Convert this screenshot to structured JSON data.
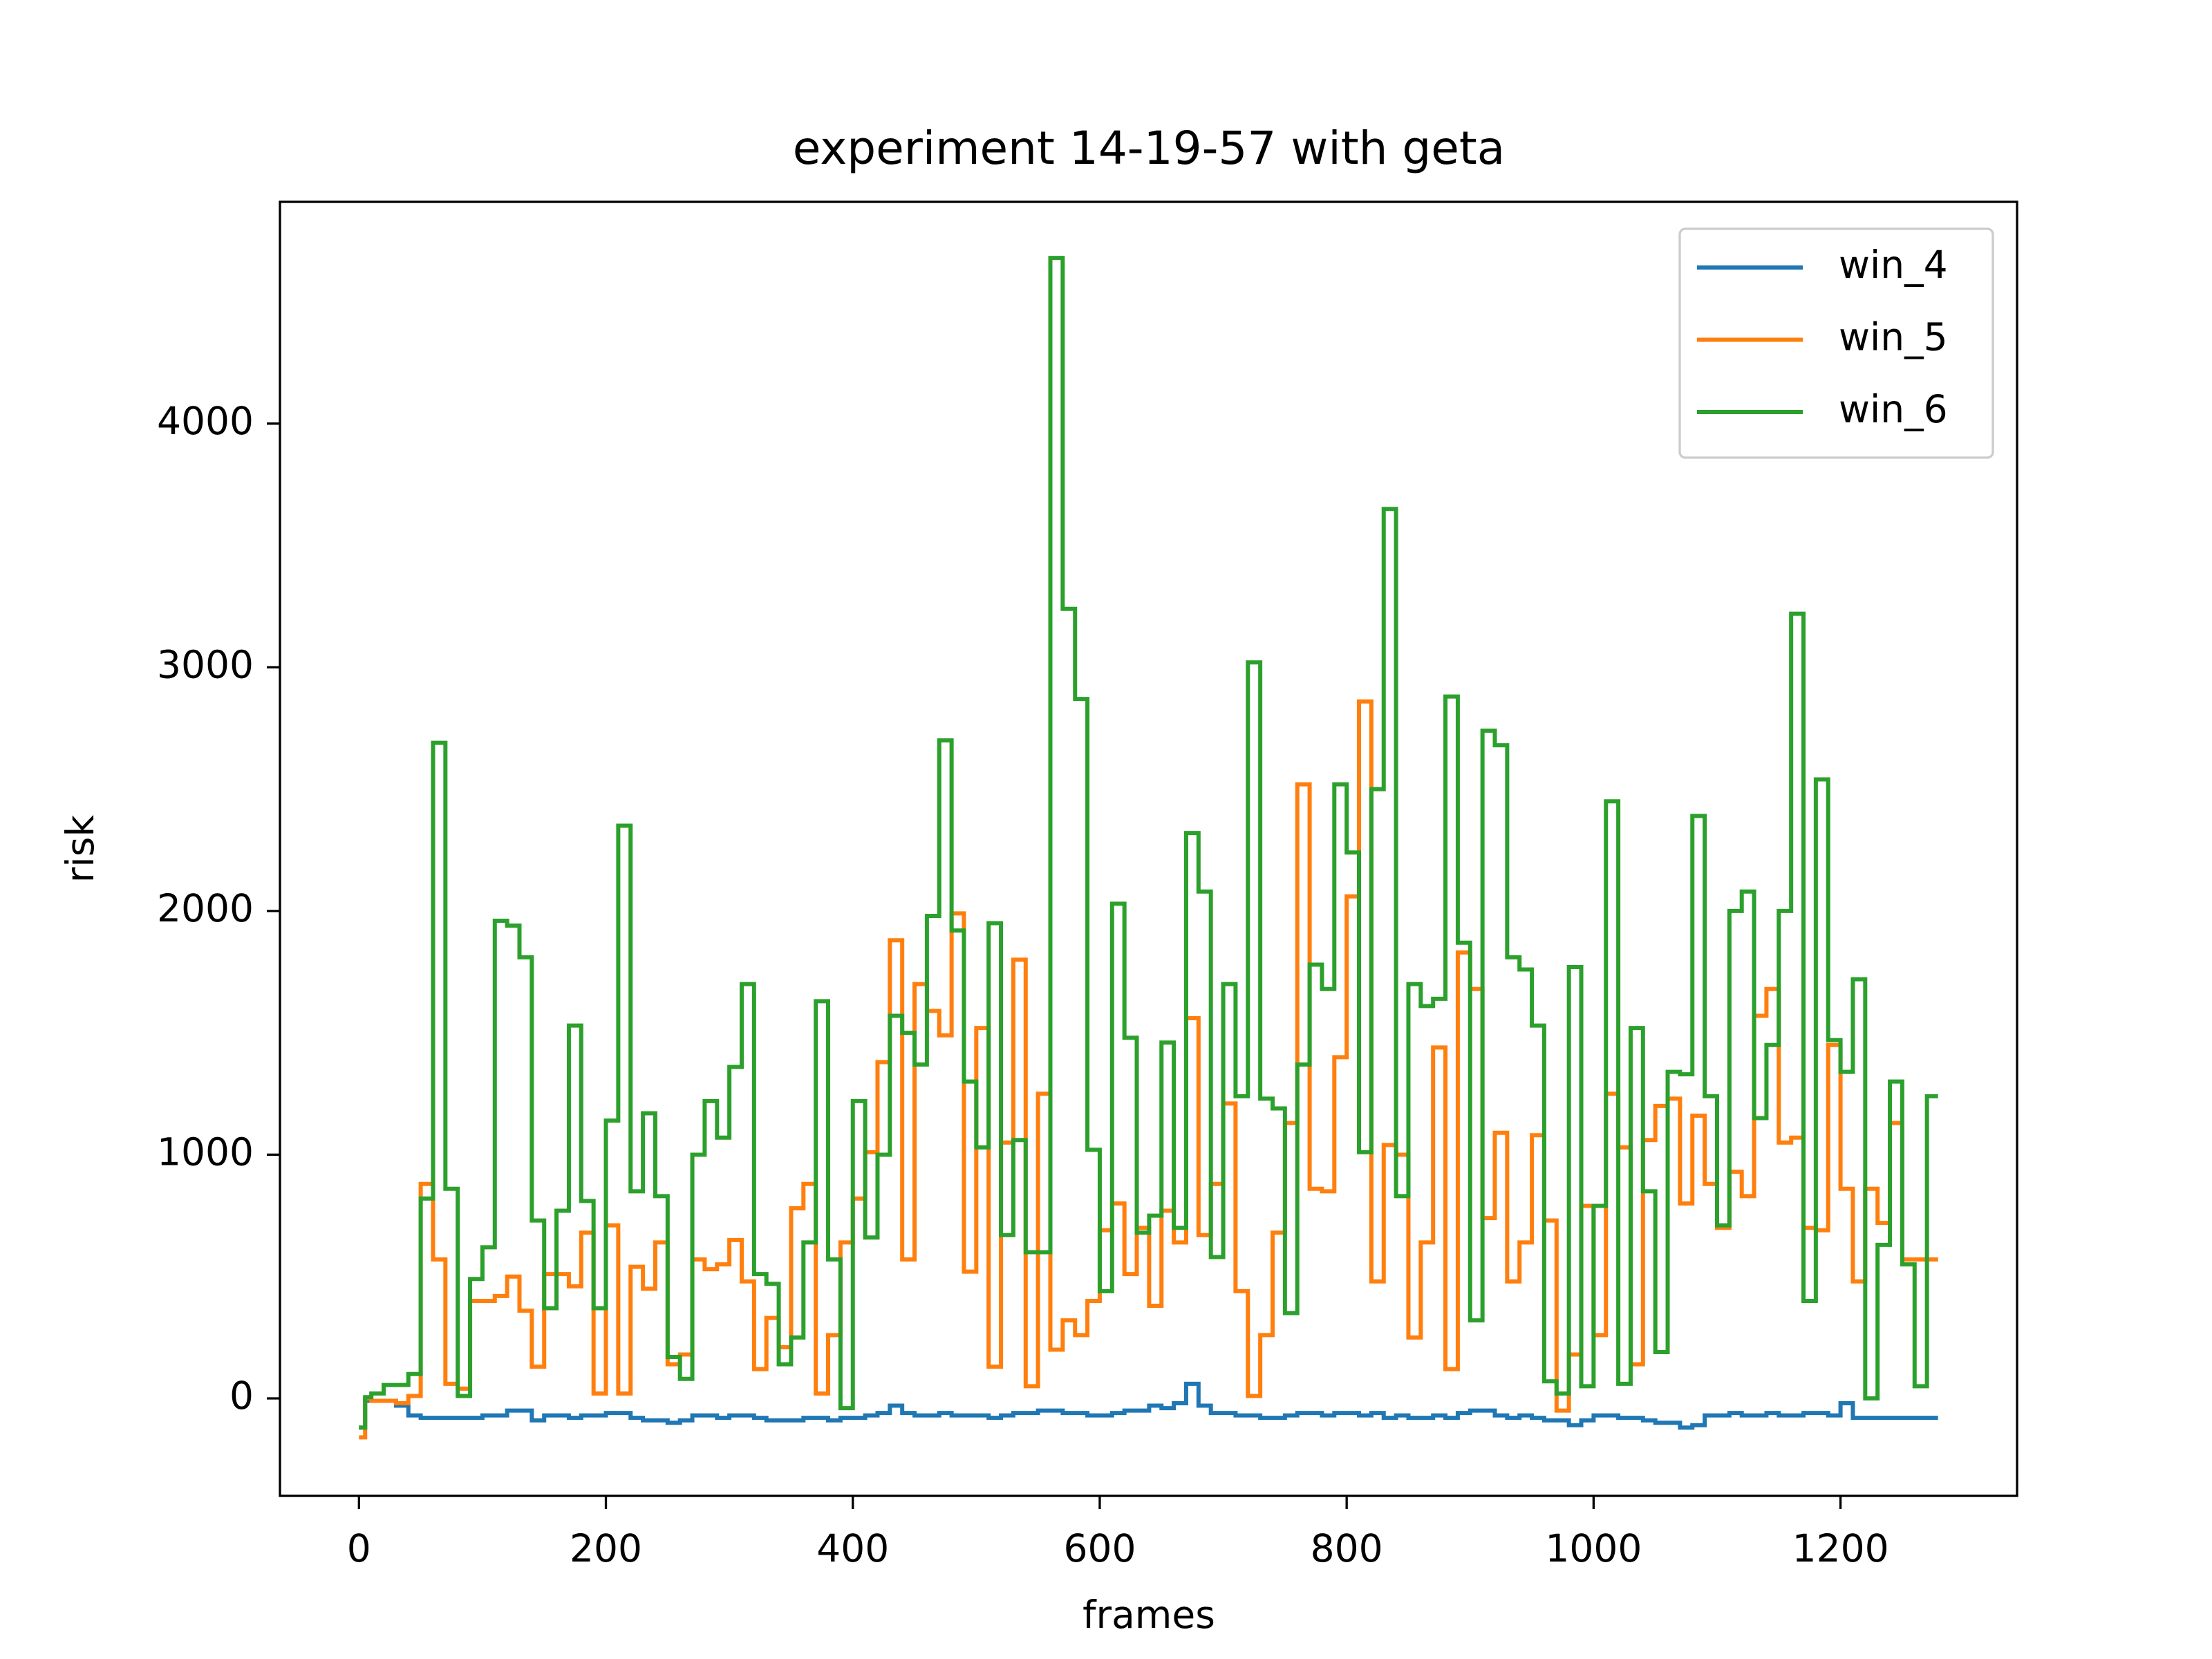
{
  "chart_data": {
    "type": "line",
    "drawstyle": "steps-post",
    "title": "experiment 14-19-57 with geta",
    "xlabel": "frames",
    "ylabel": "risk",
    "xlim": [
      -64,
      1343
    ],
    "ylim": [
      -400,
      4910
    ],
    "xticks": [
      0,
      200,
      400,
      600,
      800,
      1000,
      1200
    ],
    "yticks": [
      0,
      1000,
      2000,
      3000,
      4000
    ],
    "legend": "upper right",
    "grid": false,
    "x": [
      0,
      5,
      10,
      20,
      30,
      40,
      50,
      60,
      70,
      80,
      90,
      100,
      110,
      120,
      130,
      140,
      150,
      160,
      170,
      180,
      190,
      200,
      210,
      220,
      230,
      240,
      250,
      260,
      270,
      280,
      290,
      300,
      310,
      320,
      330,
      340,
      350,
      360,
      370,
      380,
      390,
      400,
      410,
      420,
      430,
      440,
      450,
      460,
      470,
      480,
      490,
      500,
      510,
      520,
      530,
      540,
      550,
      560,
      570,
      580,
      590,
      600,
      610,
      620,
      630,
      640,
      650,
      660,
      670,
      680,
      690,
      700,
      710,
      720,
      730,
      740,
      750,
      760,
      770,
      780,
      790,
      800,
      810,
      820,
      830,
      840,
      850,
      860,
      870,
      880,
      890,
      900,
      910,
      920,
      930,
      940,
      950,
      960,
      970,
      980,
      990,
      1000,
      1010,
      1020,
      1030,
      1040,
      1050,
      1060,
      1070,
      1080,
      1090,
      1100,
      1110,
      1120,
      1130,
      1140,
      1150,
      1160,
      1170,
      1180,
      1190,
      1200,
      1210,
      1220,
      1230,
      1240,
      1250,
      1260,
      1270,
      1279
    ],
    "series": [
      {
        "name": "win_4",
        "color": "#1f77b4",
        "values": [
          -120,
          -10,
          -10,
          -10,
          -30,
          -70,
          -80,
          -80,
          -80,
          -80,
          -80,
          -70,
          -70,
          -50,
          -50,
          -90,
          -70,
          -70,
          -80,
          -70,
          -70,
          -60,
          -60,
          -80,
          -90,
          -90,
          -100,
          -90,
          -70,
          -70,
          -80,
          -70,
          -70,
          -80,
          -90,
          -90,
          -90,
          -80,
          -80,
          -90,
          -80,
          -80,
          -70,
          -60,
          -30,
          -60,
          -70,
          -70,
          -60,
          -70,
          -70,
          -70,
          -80,
          -70,
          -60,
          -60,
          -50,
          -50,
          -60,
          -60,
          -70,
          -70,
          -60,
          -50,
          -50,
          -30,
          -40,
          -20,
          60,
          -30,
          -60,
          -60,
          -70,
          -70,
          -80,
          -80,
          -70,
          -60,
          -60,
          -70,
          -60,
          -60,
          -70,
          -60,
          -80,
          -70,
          -80,
          -80,
          -70,
          -80,
          -60,
          -50,
          -50,
          -70,
          -80,
          -70,
          -80,
          -90,
          -90,
          -110,
          -90,
          -70,
          -70,
          -80,
          -80,
          -90,
          -100,
          -100,
          -120,
          -110,
          -70,
          -70,
          -60,
          -70,
          -70,
          -60,
          -70,
          -70,
          -60,
          -60,
          -70,
          -20,
          -80,
          -80,
          -80,
          -80,
          -80,
          -80,
          -80,
          -80
        ]
      },
      {
        "name": "win_5",
        "color": "#ff7f0e",
        "values": [
          -160,
          0,
          -10,
          -10,
          -20,
          10,
          880,
          570,
          60,
          40,
          400,
          400,
          420,
          500,
          360,
          130,
          510,
          510,
          460,
          680,
          20,
          710,
          20,
          540,
          450,
          640,
          140,
          180,
          570,
          530,
          550,
          650,
          480,
          120,
          330,
          210,
          780,
          880,
          20,
          260,
          640,
          820,
          1010,
          1380,
          1880,
          570,
          1700,
          1590,
          1490,
          1990,
          520,
          1520,
          130,
          1050,
          1800,
          50,
          1250,
          200,
          320,
          260,
          400,
          690,
          800,
          510,
          700,
          380,
          770,
          640,
          1560,
          670,
          880,
          1210,
          440,
          10,
          260,
          680,
          1130,
          2520,
          860,
          850,
          1400,
          2060,
          2860,
          480,
          1040,
          1000,
          250,
          640,
          1440,
          120,
          1830,
          1680,
          740,
          1090,
          480,
          640,
          1080,
          730,
          -50,
          180,
          790,
          260,
          1250,
          1030,
          140,
          1060,
          1200,
          1230,
          800,
          1160,
          880,
          700,
          930,
          830,
          1570,
          1680,
          1050,
          1070,
          700,
          690,
          1450,
          860,
          480,
          860,
          720,
          1130,
          570,
          570,
          570,
          570
        ]
      },
      {
        "name": "win_6",
        "color": "#2ca02c",
        "values": [
          -120,
          5,
          20,
          55,
          55,
          100,
          820,
          2690,
          860,
          10,
          490,
          620,
          1960,
          1940,
          1810,
          730,
          370,
          770,
          1530,
          810,
          370,
          1140,
          2350,
          850,
          1170,
          830,
          170,
          80,
          1000,
          1220,
          1070,
          1360,
          1700,
          510,
          470,
          140,
          250,
          640,
          1630,
          570,
          -40,
          1220,
          660,
          1000,
          1570,
          1500,
          1370,
          1980,
          2700,
          1920,
          1300,
          1030,
          1950,
          670,
          1060,
          600,
          600,
          4680,
          3240,
          2870,
          1020,
          440,
          2030,
          1480,
          680,
          750,
          1460,
          700,
          2320,
          2080,
          580,
          1700,
          1240,
          3020,
          1230,
          1190,
          350,
          1370,
          1780,
          1680,
          2520,
          2240,
          1010,
          2500,
          3650,
          830,
          1700,
          1610,
          1640,
          2880,
          1870,
          320,
          2740,
          2680,
          1810,
          1760,
          1530,
          70,
          20,
          1770,
          50,
          790,
          2450,
          60,
          1520,
          850,
          190,
          1340,
          1330,
          2390,
          1240,
          710,
          2000,
          2080,
          1150,
          1450,
          2000,
          3220,
          400,
          2540,
          1470,
          1340,
          1720,
          0,
          630,
          1300,
          550,
          50,
          1240,
          1240
        ]
      }
    ]
  }
}
